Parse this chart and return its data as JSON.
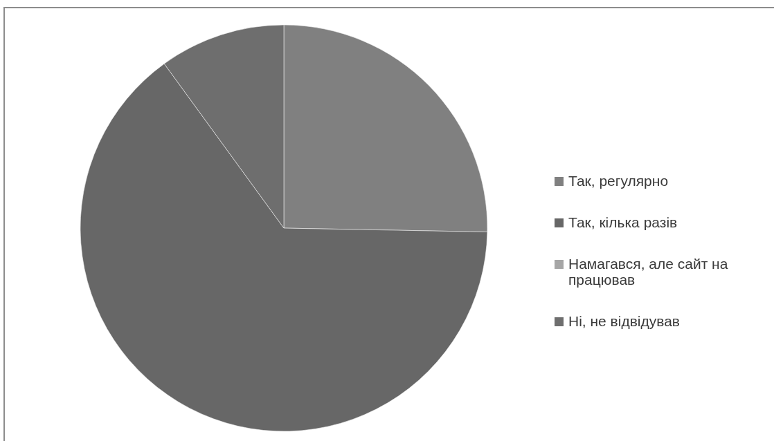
{
  "chart_data": {
    "type": "pie",
    "categories": [
      "Так, регулярно",
      "Так, кілька разів",
      "Намагався, але сайт на працював",
      "Ні, не відвідував"
    ],
    "values": [
      25.3,
      64.7,
      0,
      10
    ],
    "colors": [
      "#808080",
      "#676767",
      "#a6a6a6",
      "#6e6e6e"
    ],
    "legend": "right"
  }
}
